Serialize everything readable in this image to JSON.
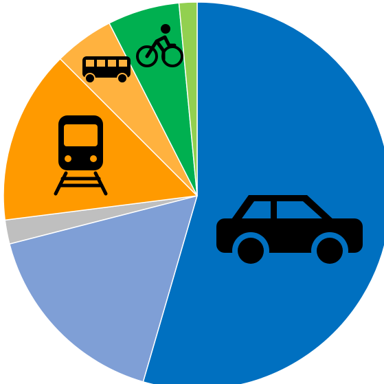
{
  "chart_data": {
    "type": "pie",
    "values": [
      54.5,
      16.5,
      2,
      14.5,
      5,
      6,
      1.5
    ],
    "colors": [
      "#0070c0",
      "#7f9fd6",
      "#bfbfbf",
      "#ff9a00",
      "#ffb23f",
      "#00b050",
      "#92d050"
    ]
  }
}
